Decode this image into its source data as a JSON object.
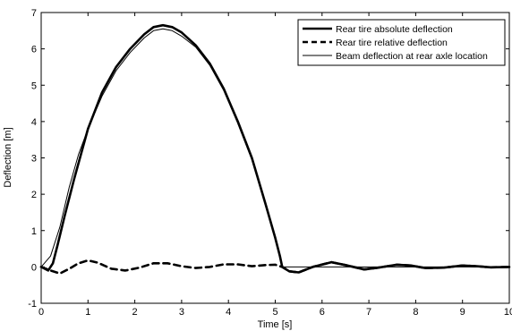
{
  "chart_data": {
    "type": "line",
    "title": "",
    "xlabel": "Time [s]",
    "ylabel": "Deflection [m]",
    "xlim": [
      0,
      10
    ],
    "ylim": [
      -1,
      7
    ],
    "xticks": [
      "0",
      "1",
      "2",
      "3",
      "4",
      "5",
      "6",
      "7",
      "8",
      "9",
      "10"
    ],
    "yticks": [
      "-1",
      "0",
      "1",
      "2",
      "3",
      "4",
      "5",
      "6",
      "7"
    ],
    "grid": false,
    "legend_position": "top-right",
    "series": [
      {
        "name": "Rear tire absolute deflection",
        "style": "solid-thick",
        "color": "#000000",
        "x": [
          0,
          0.15,
          0.25,
          0.35,
          0.5,
          0.7,
          1.0,
          1.3,
          1.6,
          1.9,
          2.2,
          2.4,
          2.6,
          2.8,
          3.0,
          3.3,
          3.6,
          3.9,
          4.2,
          4.5,
          4.8,
          5.0,
          5.1,
          5.15,
          5.3,
          5.5,
          5.8,
          6.2,
          6.5,
          6.9,
          7.2,
          7.6,
          7.9,
          8.2,
          8.6,
          9.0,
          9.3,
          9.6,
          10.0
        ],
        "y": [
          0,
          -0.1,
          0.1,
          0.6,
          1.4,
          2.4,
          3.8,
          4.8,
          5.5,
          6.0,
          6.4,
          6.6,
          6.65,
          6.6,
          6.45,
          6.1,
          5.6,
          4.9,
          4.0,
          3.0,
          1.7,
          0.8,
          0.3,
          0.0,
          -0.12,
          -0.15,
          0.0,
          0.13,
          0.05,
          -0.07,
          -0.02,
          0.06,
          0.04,
          -0.03,
          -0.02,
          0.04,
          0.02,
          -0.01,
          0.0
        ]
      },
      {
        "name": "Rear tire relative deflection",
        "style": "dashed",
        "color": "#000000",
        "x": [
          0,
          0.2,
          0.4,
          0.6,
          0.8,
          1.0,
          1.2,
          1.5,
          1.8,
          2.1,
          2.4,
          2.7,
          3.0,
          3.3,
          3.6,
          3.9,
          4.2,
          4.5,
          4.8,
          5.0,
          5.15,
          5.3,
          5.5,
          5.8,
          6.2,
          6.5,
          6.9,
          7.2,
          7.6,
          7.9,
          8.2,
          8.6,
          9.0,
          9.3,
          9.6,
          10.0
        ],
        "y": [
          0,
          -0.1,
          -0.18,
          -0.05,
          0.1,
          0.18,
          0.12,
          -0.05,
          -0.1,
          -0.02,
          0.1,
          0.1,
          0.02,
          -0.03,
          0.0,
          0.07,
          0.07,
          0.02,
          0.05,
          0.06,
          0.0,
          -0.12,
          -0.15,
          0.0,
          0.13,
          0.05,
          -0.07,
          -0.02,
          0.06,
          0.04,
          -0.03,
          -0.02,
          0.04,
          0.02,
          -0.01,
          0.0
        ]
      },
      {
        "name": "Beam deflection at rear axle location",
        "style": "solid-thin",
        "color": "#000000",
        "x": [
          0,
          0.2,
          0.4,
          0.6,
          0.8,
          1.0,
          1.3,
          1.6,
          1.9,
          2.2,
          2.4,
          2.6,
          2.8,
          3.0,
          3.3,
          3.6,
          3.9,
          4.2,
          4.5,
          4.8,
          5.0,
          5.1,
          5.15,
          5.3,
          10.0
        ],
        "y": [
          0,
          0.3,
          1.1,
          2.2,
          3.1,
          3.8,
          4.7,
          5.4,
          5.9,
          6.3,
          6.5,
          6.55,
          6.5,
          6.35,
          6.05,
          5.55,
          4.85,
          3.95,
          2.95,
          1.7,
          0.8,
          0.3,
          0.0,
          0.0,
          0.0
        ]
      }
    ]
  }
}
